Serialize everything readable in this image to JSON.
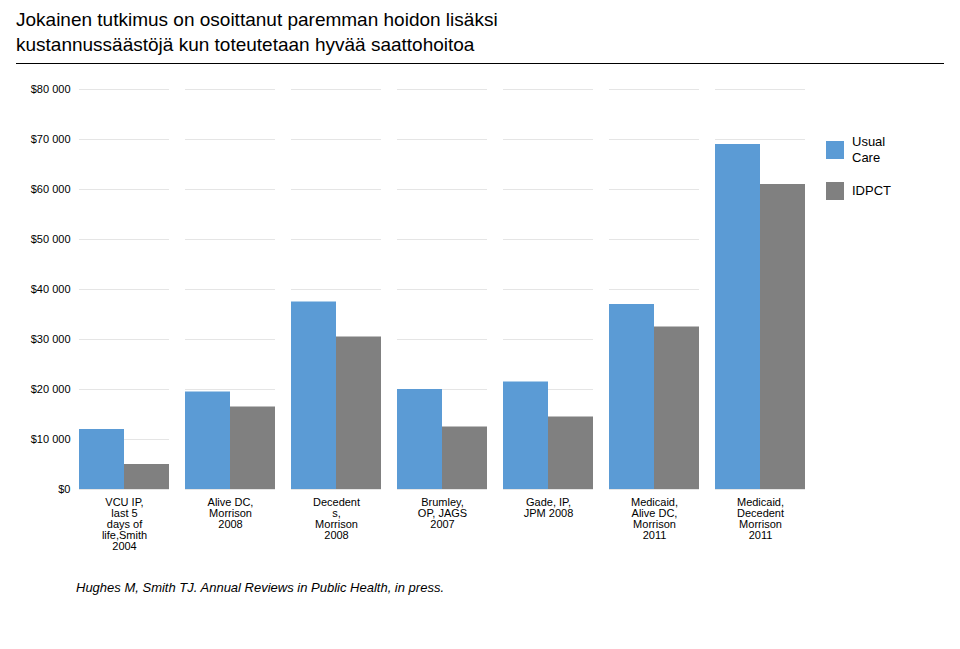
{
  "chart_data": {
    "type": "bar",
    "title": "Jokainen tutkimus on osoittanut paremman hoidon lisäksi\nkustannussäästöjä kun toteutetaan hyvää saattohoitoa",
    "categories": [
      "VCU IP,\nlast 5\ndays of\nlife,Smith\n2004",
      "Alive DC,\nMorrison\n2008",
      "Decedent\ns,\nMorrison\n2008",
      "Brumley,\nOP, JAGS\n2007",
      "Gade, IP,\nJPM 2008",
      "Medicaid,\nAlive DC,\nMorrison\n2011",
      "Medicaid,\nDecedent\nMorrison\n2011"
    ],
    "series": [
      {
        "name": "Usual\nCare",
        "color": "#5B9BD5",
        "values": [
          12000,
          19500,
          37500,
          20000,
          21500,
          37000,
          69000
        ]
      },
      {
        "name": "IDPCT",
        "color": "#808080",
        "values": [
          5000,
          16500,
          30500,
          12500,
          14500,
          32500,
          61000
        ]
      }
    ],
    "ylim": [
      0,
      80000
    ],
    "yticks": [
      {
        "value": 0,
        "label": "$0"
      },
      {
        "value": 10000,
        "label": "$10 000"
      },
      {
        "value": 20000,
        "label": "$20 000"
      },
      {
        "value": 30000,
        "label": "$30 000"
      },
      {
        "value": 40000,
        "label": "$40 000"
      },
      {
        "value": 50000,
        "label": "$50 000"
      },
      {
        "value": 60000,
        "label": "$60 000"
      },
      {
        "value": 70000,
        "label": "$70 000"
      },
      {
        "value": 80000,
        "label": "$80 000"
      }
    ],
    "grid": true,
    "legend": "right",
    "caption": "Hughes M, Smith TJ. Annual Reviews in Public Health, in press."
  }
}
